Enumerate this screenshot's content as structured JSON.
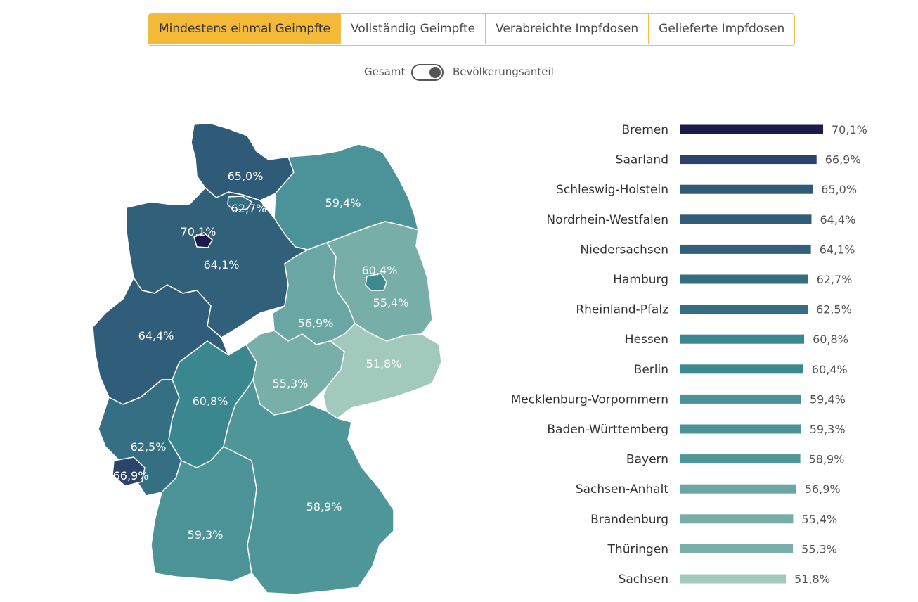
{
  "tabs": [
    {
      "label": "Mindestens einmal Geimpfte",
      "active": true
    },
    {
      "label": "Vollständig Geimpfte",
      "active": false
    },
    {
      "label": "Verabreichte Impfdosen",
      "active": false
    },
    {
      "label": "Gelieferte Impfdosen",
      "active": false
    }
  ],
  "toggle": {
    "left_label": "Gesamt",
    "right_label": "Bevölkerungsanteil",
    "state": "right"
  },
  "colors": {
    "accent": "#f3b937",
    "scale": [
      "#1c1a4a",
      "#2c4469",
      "#2f5b78",
      "#346e83",
      "#3b878f",
      "#4f9699",
      "#7aaea9",
      "#a1cabc"
    ]
  },
  "chart_data": [
    {
      "type": "bar",
      "orientation": "horizontal",
      "categories": [
        "Bremen",
        "Saarland",
        "Schleswig-Holstein",
        "Nordrhein-Westfalen",
        "Niedersachsen",
        "Hamburg",
        "Rheinland-Pfalz",
        "Hessen",
        "Berlin",
        "Mecklenburg-Vorpommern",
        "Baden-Württemberg",
        "Bayern",
        "Sachsen-Anhalt",
        "Brandenburg",
        "Thüringen",
        "Sachsen"
      ],
      "values": [
        70.1,
        66.9,
        65.0,
        64.4,
        64.1,
        62.7,
        62.5,
        60.8,
        60.4,
        59.4,
        59.3,
        58.9,
        56.9,
        55.4,
        55.3,
        51.8
      ],
      "value_labels": [
        "70,1%",
        "66,9%",
        "65,0%",
        "64,4%",
        "64,1%",
        "62,7%",
        "62,5%",
        "60,8%",
        "60,4%",
        "59,4%",
        "59,3%",
        "58,9%",
        "56,9%",
        "55,4%",
        "55,3%",
        "51,8%"
      ],
      "colors": [
        "#1c1a4a",
        "#2c4469",
        "#2f5b78",
        "#305e7a",
        "#31607b",
        "#346e83",
        "#356f84",
        "#3b878f",
        "#3d8990",
        "#4b9398",
        "#4c9398",
        "#4f9699",
        "#6aa6a3",
        "#78aea8",
        "#79afa9",
        "#a1cabc"
      ],
      "xlim": [
        0,
        70.1
      ],
      "title": "",
      "xlabel": "",
      "ylabel": ""
    },
    {
      "type": "choropleth",
      "regions": [
        {
          "name": "Schleswig-Holstein",
          "label": "65,0%",
          "value": 65.0,
          "color": "#2f5b78"
        },
        {
          "name": "Hamburg",
          "label": "62,7%",
          "value": 62.7,
          "color": "#346e83"
        },
        {
          "name": "Bremen",
          "label": "70,1%",
          "value": 70.1,
          "color": "#1c1a4a"
        },
        {
          "name": "Niedersachsen",
          "label": "64,1%",
          "value": 64.1,
          "color": "#31607b"
        },
        {
          "name": "Mecklenburg-Vorpommern",
          "label": "59,4%",
          "value": 59.4,
          "color": "#4b9398"
        },
        {
          "name": "Berlin",
          "label": "60,4%",
          "value": 60.4,
          "color": "#3d8990"
        },
        {
          "name": "Brandenburg",
          "label": "55,4%",
          "value": 55.4,
          "color": "#78aea8"
        },
        {
          "name": "Sachsen-Anhalt",
          "label": "56,9%",
          "value": 56.9,
          "color": "#6aa6a3"
        },
        {
          "name": "Nordrhein-Westfalen",
          "label": "64,4%",
          "value": 64.4,
          "color": "#305e7a"
        },
        {
          "name": "Hessen",
          "label": "60,8%",
          "value": 60.8,
          "color": "#3b878f"
        },
        {
          "name": "Thüringen",
          "label": "55,3%",
          "value": 55.3,
          "color": "#79afa9"
        },
        {
          "name": "Sachsen",
          "label": "51,8%",
          "value": 51.8,
          "color": "#a1cabc"
        },
        {
          "name": "Rheinland-Pfalz",
          "label": "62,5%",
          "value": 62.5,
          "color": "#356f84"
        },
        {
          "name": "Saarland",
          "label": "66,9%",
          "value": 66.9,
          "color": "#2c4469"
        },
        {
          "name": "Baden-Württemberg",
          "label": "59,3%",
          "value": 59.3,
          "color": "#4c9398"
        },
        {
          "name": "Bayern",
          "label": "58,9%",
          "value": 58.9,
          "color": "#4f9699"
        }
      ]
    }
  ]
}
